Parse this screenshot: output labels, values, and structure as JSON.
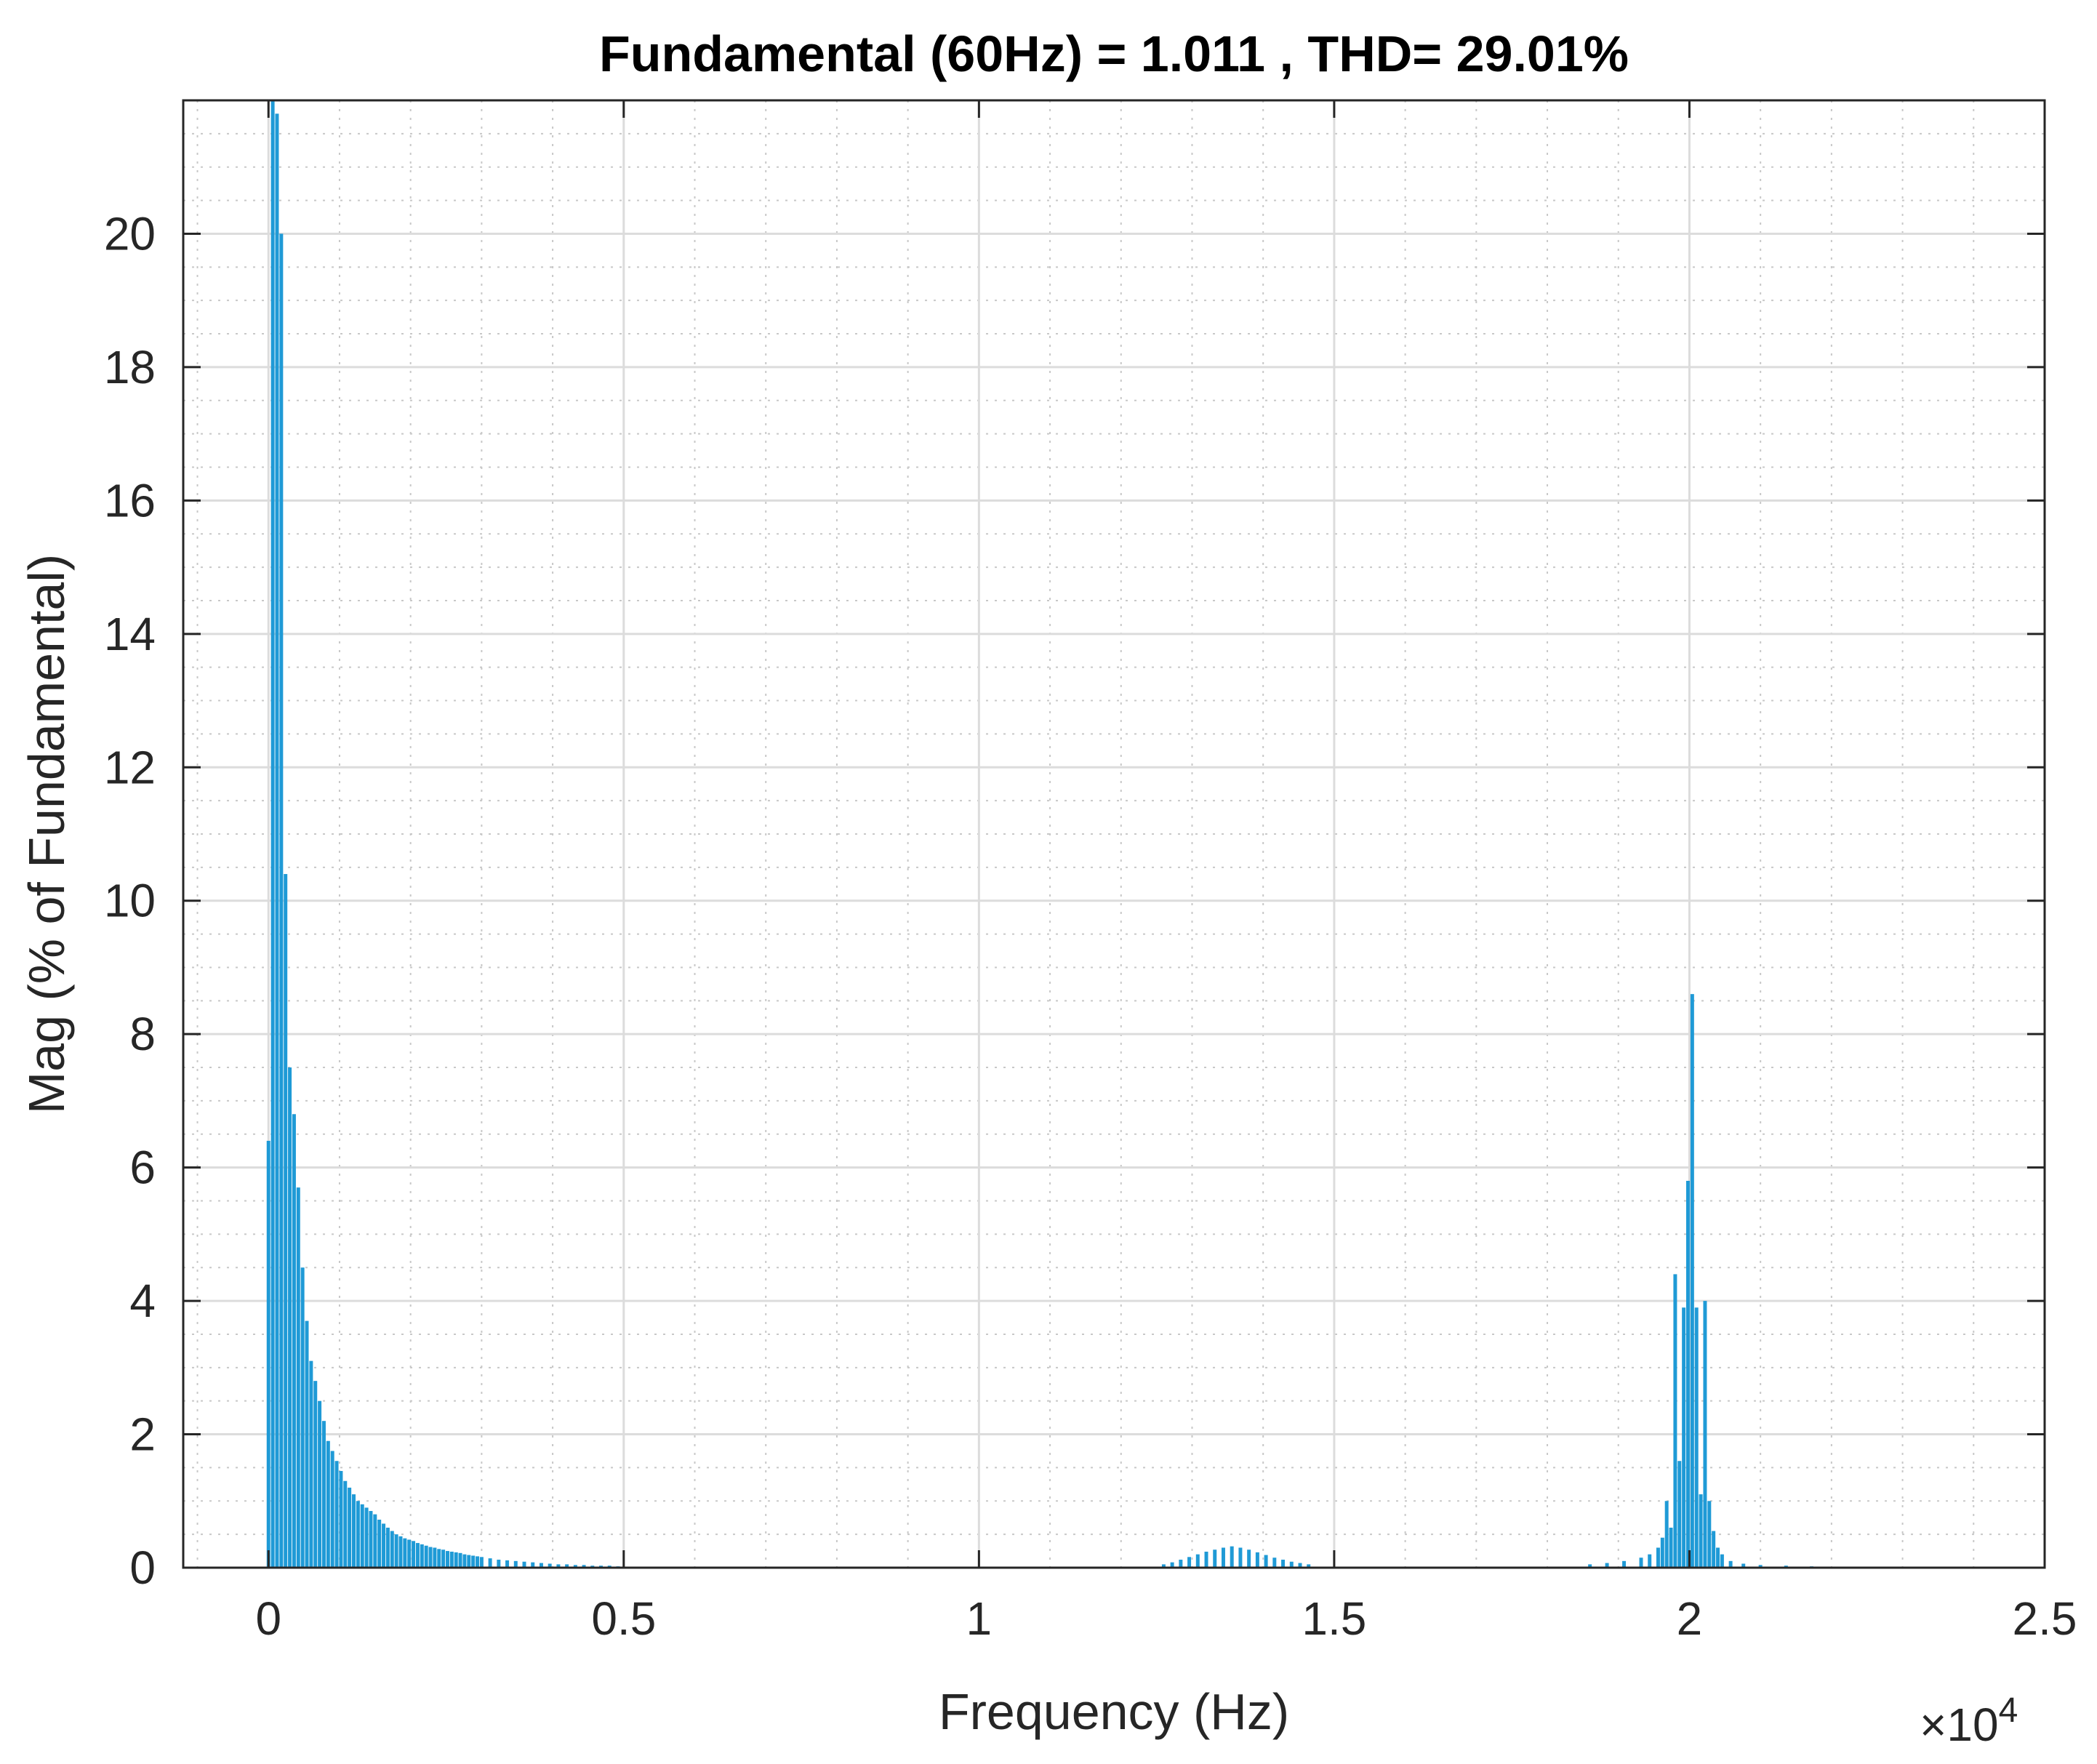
{
  "chart_data": {
    "type": "bar",
    "title": "Fundamental (60Hz) = 1.011 , THD= 29.01%",
    "xlabel": "Frequency (Hz)",
    "ylabel": "Mag (% of Fundamental)",
    "x_exponent_label": "×10",
    "x_exponent_power": "4",
    "xlim": [
      -1200,
      25000
    ],
    "ylim": [
      0,
      22
    ],
    "x_ticks": [
      0,
      5000,
      10000,
      15000,
      20000,
      25000
    ],
    "x_tick_labels": [
      "0",
      "0.5",
      "1",
      "1.5",
      "2",
      "2.5"
    ],
    "y_ticks": [
      0,
      2,
      4,
      6,
      8,
      10,
      12,
      14,
      16,
      18,
      20
    ],
    "y_tick_labels": [
      "0",
      "2",
      "4",
      "6",
      "8",
      "10",
      "12",
      "14",
      "16",
      "18",
      "20"
    ],
    "grid": true,
    "minor_grid": true,
    "bar_color": "#1f9ad6",
    "bars": [
      [
        0,
        6.4
      ],
      [
        60,
        22
      ],
      [
        120,
        21.8
      ],
      [
        180,
        20
      ],
      [
        240,
        10.4
      ],
      [
        300,
        7.5
      ],
      [
        360,
        6.8
      ],
      [
        420,
        5.7
      ],
      [
        480,
        4.5
      ],
      [
        540,
        3.7
      ],
      [
        600,
        3.1
      ],
      [
        660,
        2.8
      ],
      [
        720,
        2.5
      ],
      [
        780,
        2.2
      ],
      [
        840,
        1.9
      ],
      [
        900,
        1.75
      ],
      [
        960,
        1.6
      ],
      [
        1020,
        1.45
      ],
      [
        1080,
        1.3
      ],
      [
        1140,
        1.2
      ],
      [
        1200,
        1.1
      ],
      [
        1260,
        1.0
      ],
      [
        1320,
        0.95
      ],
      [
        1380,
        0.9
      ],
      [
        1440,
        0.85
      ],
      [
        1500,
        0.8
      ],
      [
        1560,
        0.72
      ],
      [
        1620,
        0.66
      ],
      [
        1680,
        0.6
      ],
      [
        1740,
        0.55
      ],
      [
        1800,
        0.5
      ],
      [
        1860,
        0.47
      ],
      [
        1920,
        0.44
      ],
      [
        1980,
        0.42
      ],
      [
        2040,
        0.4
      ],
      [
        2100,
        0.37
      ],
      [
        2160,
        0.35
      ],
      [
        2220,
        0.33
      ],
      [
        2280,
        0.31
      ],
      [
        2340,
        0.3
      ],
      [
        2400,
        0.28
      ],
      [
        2460,
        0.27
      ],
      [
        2520,
        0.25
      ],
      [
        2580,
        0.24
      ],
      [
        2640,
        0.23
      ],
      [
        2700,
        0.22
      ],
      [
        2760,
        0.2
      ],
      [
        2820,
        0.19
      ],
      [
        2880,
        0.18
      ],
      [
        2940,
        0.17
      ],
      [
        3000,
        0.16
      ],
      [
        3120,
        0.14
      ],
      [
        3240,
        0.12
      ],
      [
        3360,
        0.11
      ],
      [
        3480,
        0.1
      ],
      [
        3600,
        0.09
      ],
      [
        3720,
        0.08
      ],
      [
        3840,
        0.07
      ],
      [
        3960,
        0.06
      ],
      [
        4080,
        0.05
      ],
      [
        4200,
        0.05
      ],
      [
        4320,
        0.04
      ],
      [
        4440,
        0.04
      ],
      [
        4560,
        0.03
      ],
      [
        4680,
        0.03
      ],
      [
        4800,
        0.03
      ],
      [
        4920,
        0.02
      ],
      [
        12600,
        0.05
      ],
      [
        12720,
        0.08
      ],
      [
        12840,
        0.12
      ],
      [
        12960,
        0.16
      ],
      [
        13080,
        0.2
      ],
      [
        13200,
        0.24
      ],
      [
        13320,
        0.27
      ],
      [
        13440,
        0.3
      ],
      [
        13560,
        0.32
      ],
      [
        13680,
        0.3
      ],
      [
        13800,
        0.27
      ],
      [
        13920,
        0.23
      ],
      [
        14040,
        0.19
      ],
      [
        14160,
        0.15
      ],
      [
        14280,
        0.12
      ],
      [
        14400,
        0.09
      ],
      [
        14520,
        0.07
      ],
      [
        14640,
        0.05
      ],
      [
        18600,
        0.05
      ],
      [
        18840,
        0.07
      ],
      [
        19080,
        0.1
      ],
      [
        19320,
        0.15
      ],
      [
        19440,
        0.2
      ],
      [
        19560,
        0.3
      ],
      [
        19620,
        0.45
      ],
      [
        19680,
        1.0
      ],
      [
        19740,
        0.6
      ],
      [
        19800,
        4.4
      ],
      [
        19860,
        1.6
      ],
      [
        19920,
        3.9
      ],
      [
        19980,
        5.8
      ],
      [
        20040,
        8.6
      ],
      [
        20100,
        3.9
      ],
      [
        20160,
        1.1
      ],
      [
        20220,
        4.0
      ],
      [
        20280,
        1.0
      ],
      [
        20340,
        0.55
      ],
      [
        20400,
        0.3
      ],
      [
        20460,
        0.2
      ],
      [
        20580,
        0.1
      ],
      [
        20760,
        0.06
      ],
      [
        21000,
        0.04
      ],
      [
        21360,
        0.03
      ],
      [
        21720,
        0.02
      ],
      [
        22080,
        0.01
      ]
    ]
  }
}
